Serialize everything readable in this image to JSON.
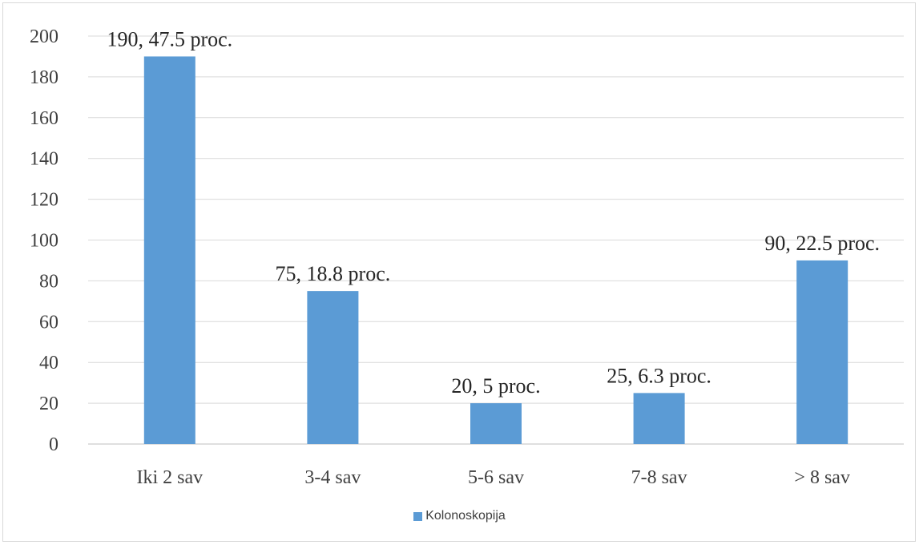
{
  "chart_data": {
    "type": "bar",
    "categories": [
      "Iki 2 sav",
      "3-4 sav",
      "5-6 sav",
      "7-8 sav",
      "> 8 sav"
    ],
    "series": [
      {
        "name": "Kolonoskopija",
        "values": [
          190,
          75,
          20,
          25,
          90
        ],
        "color": "#5b9bd5"
      }
    ],
    "data_labels": [
      "190, 47.5 proc.",
      "75, 18.8 proc.",
      "20, 5 proc.",
      "25, 6.3 proc.",
      "90, 22.5 proc."
    ],
    "title": "",
    "xlabel": "",
    "ylabel": "",
    "ylim": [
      0,
      200
    ],
    "yticks": [
      0,
      20,
      40,
      60,
      80,
      100,
      120,
      140,
      160,
      180,
      200
    ],
    "grid": true,
    "legend_position": "bottom"
  },
  "legend": {
    "label": "Kolonoskopija"
  }
}
